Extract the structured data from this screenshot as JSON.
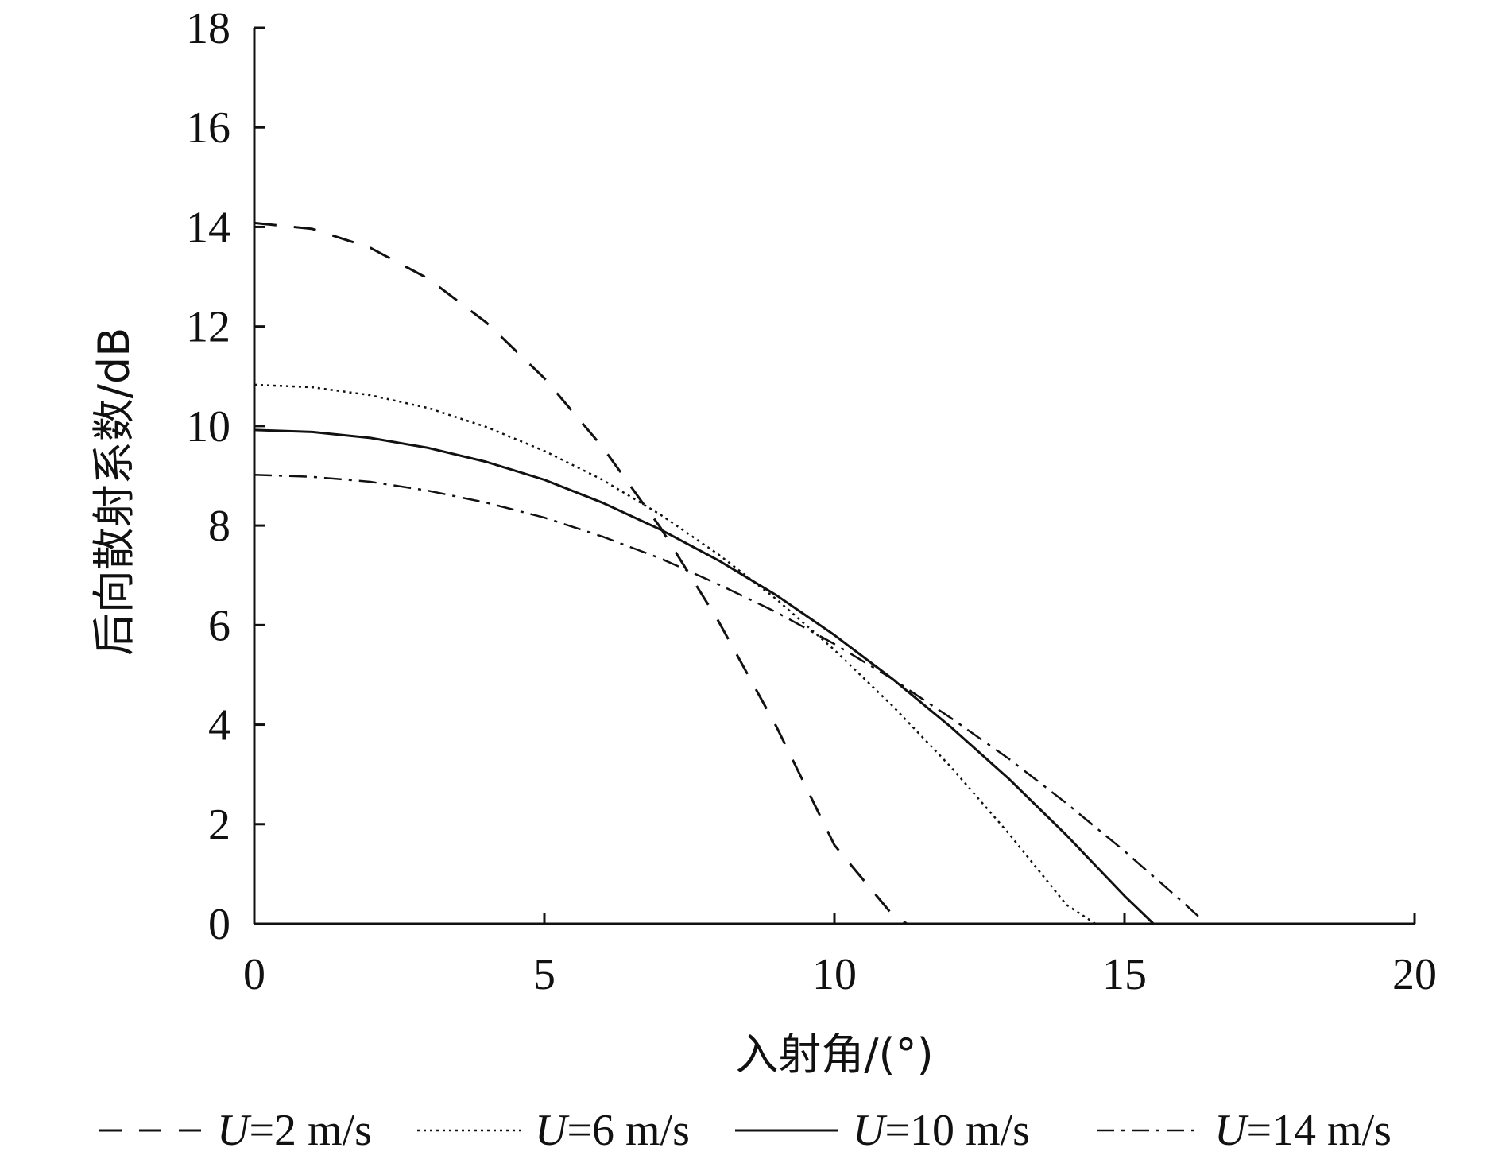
{
  "chart_data": {
    "type": "line",
    "title": "",
    "xlabel": "入射角/(°)",
    "ylabel": "后向散射系数/dB",
    "xlim": [
      0,
      20
    ],
    "ylim": [
      0,
      18
    ],
    "xticks": [
      "0",
      "5",
      "10",
      "15",
      "20"
    ],
    "yticks": [
      "0",
      "2",
      "4",
      "6",
      "8",
      "10",
      "12",
      "14",
      "16",
      "18"
    ],
    "grid": false,
    "legend_position": "bottom",
    "series": [
      {
        "name_var": "U",
        "name_rest": "=2 m/s",
        "dash": "dashed",
        "x": [
          0,
          1,
          2,
          3,
          4,
          5,
          6,
          7,
          8,
          9,
          10,
          11,
          11.25
        ],
        "y": [
          14.08,
          13.96,
          13.58,
          12.96,
          12.08,
          10.96,
          9.58,
          7.96,
          6.08,
          3.96,
          1.58,
          0.18,
          0
        ]
      },
      {
        "name_var": "U",
        "name_rest": "=6 m/s",
        "dash": "dotted",
        "x": [
          0,
          1,
          2,
          3,
          4,
          5,
          6,
          7,
          8,
          9,
          10,
          11,
          12,
          13,
          14,
          14.5
        ],
        "y": [
          10.83,
          10.78,
          10.62,
          10.36,
          9.98,
          9.5,
          8.92,
          8.22,
          7.42,
          6.52,
          5.5,
          4.38,
          3.16,
          1.82,
          0.38,
          0
        ]
      },
      {
        "name_var": "U",
        "name_rest": "=10 m/s",
        "dash": "solid",
        "x": [
          0,
          1,
          2,
          3,
          4,
          5,
          6,
          7,
          8,
          9,
          10,
          11,
          12,
          13,
          14,
          15,
          15.5
        ],
        "y": [
          9.92,
          9.88,
          9.76,
          9.56,
          9.28,
          8.92,
          8.46,
          7.92,
          7.3,
          6.6,
          5.8,
          4.92,
          3.96,
          2.92,
          1.78,
          0.56,
          0
        ]
      },
      {
        "name_var": "U",
        "name_rest": "=14 m/s",
        "dash": "dashdot",
        "x": [
          0,
          1,
          2,
          3,
          4,
          5,
          6,
          7,
          8,
          9,
          10,
          11,
          12,
          13,
          14,
          15,
          16,
          16.3
        ],
        "y": [
          9.02,
          8.98,
          8.88,
          8.7,
          8.46,
          8.16,
          7.78,
          7.34,
          6.82,
          6.26,
          5.62,
          4.92,
          4.14,
          3.32,
          2.42,
          1.46,
          0.44,
          0.12
        ]
      }
    ]
  }
}
